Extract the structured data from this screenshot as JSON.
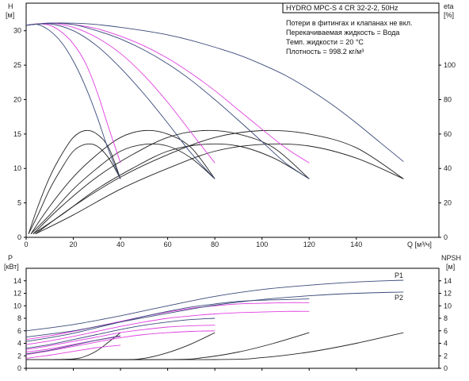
{
  "chart_data": [
    {
      "type": "line",
      "title": "HYDRO MPC-S 4 CR 32-2-2, 50Hz",
      "info_lines": [
        "Потери в фитингах и клапанах не вкл.",
        "Перекачиваемая жидкость = Вода",
        "Темп. жидкости = 20 °C",
        "Плотность = 998.2 кг/м³"
      ],
      "xlabel": "Q [м³/ч]",
      "ylabel": "H",
      "ylabel_unit": "[м]",
      "y2label": "eta",
      "y2label_unit": "[%]",
      "xlim": [
        0,
        175
      ],
      "ylim": [
        0,
        34
      ],
      "y2lim": [
        0,
        136
      ],
      "x_ticks": [
        0,
        20,
        40,
        60,
        80,
        100,
        120,
        140
      ],
      "y_ticks": [
        0,
        5,
        10,
        15,
        20,
        25,
        30
      ],
      "y2_ticks": [
        0,
        20,
        40,
        60,
        80,
        100
      ],
      "colors": {
        "head_max": "#3a4a7a",
        "head_reduced": "#e040e0",
        "eta": "#222222"
      },
      "head_max": [
        {
          "x": [
            0,
            10,
            20,
            30,
            40,
            50,
            60,
            70,
            80,
            90,
            100,
            110,
            120,
            130,
            140,
            150,
            160
          ],
          "y": [
            30.8,
            31.1,
            31.1,
            30.9,
            30.5,
            30.0,
            29.4,
            28.6,
            27.6,
            26.5,
            25.1,
            23.5,
            21.5,
            19.2,
            16.6,
            13.8,
            11.0
          ]
        },
        {
          "x": [
            0,
            10,
            20,
            30,
            40,
            50,
            60,
            70,
            80,
            90,
            100,
            110,
            120
          ],
          "y": [
            30.8,
            31.1,
            30.9,
            30.0,
            28.8,
            27.2,
            25.2,
            22.8,
            20.0,
            17.0,
            13.9,
            10.8,
            8.5
          ]
        },
        {
          "x": [
            0,
            10,
            20,
            30,
            40,
            50,
            60,
            70,
            80
          ],
          "y": [
            30.8,
            31.0,
            30.0,
            27.8,
            24.6,
            20.8,
            16.6,
            12.2,
            8.5
          ]
        },
        {
          "x": [
            0,
            5,
            10,
            15,
            20,
            25,
            30,
            35,
            40
          ],
          "y": [
            30.8,
            30.9,
            30.0,
            28.3,
            25.6,
            22.0,
            17.6,
            12.6,
            8.5
          ]
        }
      ],
      "head_reduced": [
        {
          "x": [
            0,
            10,
            20,
            30,
            40,
            50,
            60,
            70,
            80,
            90,
            100,
            110,
            120
          ],
          "y": [
            30.8,
            31.1,
            30.9,
            30.3,
            29.2,
            27.8,
            26.0,
            23.8,
            21.3,
            18.5,
            15.7,
            13.0,
            10.8
          ]
        },
        {
          "x": [
            0,
            10,
            20,
            30,
            40,
            50,
            60,
            70,
            80
          ],
          "y": [
            30.8,
            31.1,
            30.5,
            29.0,
            26.7,
            23.5,
            19.6,
            15.2,
            10.8
          ]
        },
        {
          "x": [
            0,
            5,
            10,
            15,
            20,
            25,
            30,
            35,
            40
          ],
          "y": [
            30.8,
            31.0,
            30.8,
            29.8,
            28.1,
            25.4,
            21.2,
            15.9,
            10.8
          ]
        }
      ],
      "efficiency": [
        {
          "x": [
            1,
            5,
            10,
            15,
            20,
            25,
            30,
            35,
            40
          ],
          "y": [
            2,
            18,
            35,
            48,
            58,
            62,
            60,
            52,
            34
          ]
        },
        {
          "x": [
            1,
            5,
            10,
            15,
            20,
            25,
            30,
            35,
            40
          ],
          "y": [
            2,
            13,
            28,
            40,
            50,
            54,
            53,
            46,
            34
          ]
        },
        {
          "x": [
            2,
            10,
            20,
            30,
            40,
            50,
            60,
            70,
            80
          ],
          "y": [
            2,
            18,
            35,
            48,
            58,
            62,
            60,
            52,
            34
          ]
        },
        {
          "x": [
            2,
            10,
            20,
            30,
            40,
            50,
            60,
            70,
            80
          ],
          "y": [
            2,
            13,
            28,
            40,
            50,
            54,
            53,
            46,
            34
          ]
        },
        {
          "x": [
            3,
            15,
            30,
            45,
            60,
            75,
            90,
            105,
            120
          ],
          "y": [
            2,
            18,
            35,
            48,
            58,
            62,
            60,
            52,
            34
          ]
        },
        {
          "x": [
            3,
            15,
            30,
            45,
            60,
            75,
            90,
            105,
            120
          ],
          "y": [
            2,
            13,
            28,
            40,
            50,
            54,
            53,
            46,
            34
          ]
        },
        {
          "x": [
            4,
            20,
            40,
            60,
            80,
            100,
            120,
            140,
            160
          ],
          "y": [
            2,
            18,
            35,
            48,
            58,
            62,
            60,
            52,
            34
          ]
        },
        {
          "x": [
            4,
            20,
            40,
            60,
            80,
            100,
            120,
            140,
            160
          ],
          "y": [
            2,
            13,
            28,
            40,
            50,
            54,
            53,
            46,
            34
          ]
        }
      ]
    },
    {
      "type": "line",
      "ylabel": "P",
      "ylabel_unit": "[кВт]",
      "y2label": "NPSH",
      "y2label_unit": "[м]",
      "xlim": [
        0,
        175
      ],
      "ylim": [
        0,
        16
      ],
      "y_ticks": [
        0,
        2,
        4,
        6,
        8,
        10,
        12,
        14
      ],
      "y2_ticks": [
        0,
        2,
        4,
        6,
        8,
        10,
        12,
        14
      ],
      "colors": {
        "power_max": "#3a4a7a",
        "power_reduced": "#e040e0",
        "npsh": "#222222"
      },
      "series_labels": [
        "P1",
        "P2"
      ],
      "power_max": [
        {
          "name": "P1",
          "x": [
            0,
            20,
            40,
            60,
            80,
            100,
            120,
            140,
            160
          ],
          "y": [
            6.0,
            7.0,
            8.4,
            10.0,
            11.5,
            12.6,
            13.3,
            13.8,
            14.1
          ]
        },
        {
          "name": "P2",
          "x": [
            0,
            20,
            40,
            60,
            80,
            100,
            120,
            140,
            160
          ],
          "y": [
            5.0,
            6.0,
            7.4,
            8.8,
            10.1,
            11.0,
            11.6,
            12.0,
            12.2
          ]
        },
        {
          "x": [
            0,
            10,
            20,
            30,
            40,
            50,
            60,
            70,
            80,
            90,
            100,
            110,
            120
          ],
          "y": [
            4.3,
            4.9,
            5.6,
            6.5,
            7.4,
            8.3,
            9.1,
            9.8,
            10.3,
            10.7,
            10.9,
            11.0,
            11.1
          ]
        },
        {
          "x": [
            0,
            10,
            20,
            30,
            40,
            50,
            60,
            70,
            80
          ],
          "y": [
            3.2,
            3.8,
            4.6,
            5.4,
            6.2,
            6.9,
            7.4,
            7.8,
            8.0
          ]
        },
        {
          "x": [
            0,
            10,
            20,
            30,
            40
          ],
          "y": [
            2.3,
            2.9,
            3.7,
            4.5,
            5.2
          ]
        }
      ],
      "power_reduced": [
        {
          "x": [
            0,
            10,
            20,
            30,
            40,
            50,
            60,
            70,
            80,
            90,
            100,
            110,
            120
          ],
          "y": [
            4.6,
            5.2,
            5.9,
            6.7,
            7.5,
            8.3,
            9.0,
            9.6,
            10.0,
            10.3,
            10.4,
            10.5,
            10.5
          ]
        },
        {
          "x": [
            0,
            10,
            20,
            30,
            40,
            50,
            60,
            70,
            80,
            90,
            100,
            110,
            120
          ],
          "y": [
            3.8,
            4.4,
            5.1,
            5.9,
            6.7,
            7.4,
            8.0,
            8.4,
            8.7,
            8.9,
            9.0,
            9.1,
            9.1
          ]
        },
        {
          "x": [
            0,
            10,
            20,
            30,
            40,
            50,
            60,
            70,
            80
          ],
          "y": [
            3.0,
            3.6,
            4.3,
            5.0,
            5.7,
            6.2,
            6.6,
            6.8,
            6.9
          ]
        },
        {
          "x": [
            0,
            10,
            20,
            30,
            40,
            50,
            60,
            70,
            80
          ],
          "y": [
            2.2,
            2.8,
            3.5,
            4.2,
            4.9,
            5.4,
            5.7,
            5.9,
            6.0
          ]
        },
        {
          "x": [
            0,
            10,
            20,
            30,
            40
          ],
          "y": [
            2.6,
            3.1,
            3.8,
            4.5,
            5.1
          ]
        },
        {
          "x": [
            0,
            10,
            20,
            30,
            40
          ],
          "y": [
            1.6,
            2.1,
            2.7,
            3.3,
            3.7
          ]
        }
      ],
      "npsh": [
        {
          "x": [
            0,
            10,
            20,
            25,
            30,
            35,
            40
          ],
          "y": [
            1.4,
            1.4,
            1.5,
            1.9,
            2.8,
            4.2,
            5.7
          ]
        },
        {
          "x": [
            0,
            40,
            50,
            60,
            70,
            80
          ],
          "y": [
            1.4,
            1.4,
            1.6,
            2.5,
            3.9,
            5.7
          ]
        },
        {
          "x": [
            0,
            60,
            75,
            90,
            105,
            120
          ],
          "y": [
            1.4,
            1.4,
            1.7,
            2.6,
            4.0,
            5.7
          ]
        },
        {
          "x": [
            0,
            80,
            100,
            120,
            140,
            160
          ],
          "y": [
            1.4,
            1.4,
            1.7,
            2.6,
            4.0,
            5.7
          ]
        }
      ]
    }
  ]
}
